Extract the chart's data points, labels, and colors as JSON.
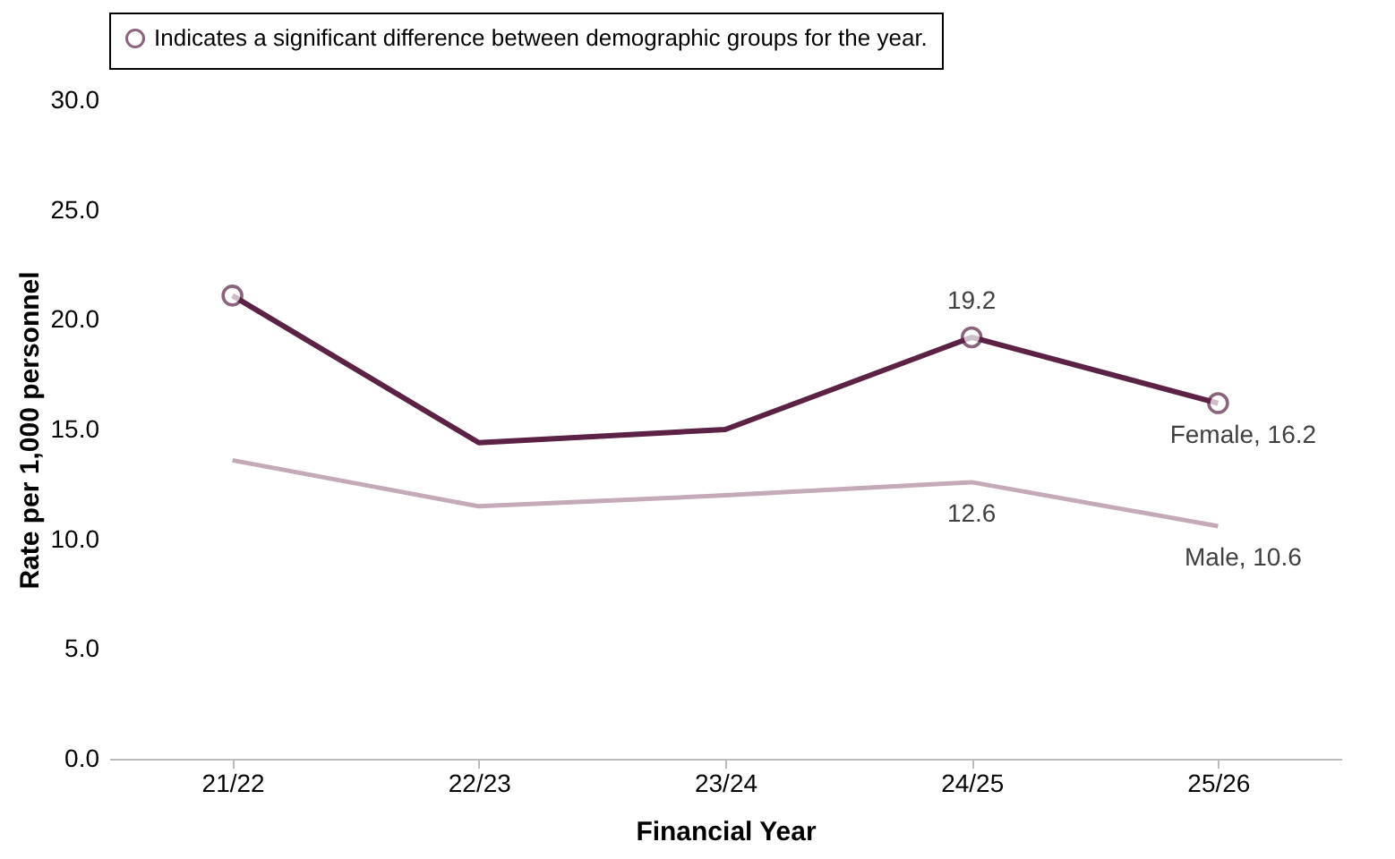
{
  "chart_data": {
    "type": "line",
    "xlabel": "Financial Year",
    "ylabel": "Rate per 1,000 personnel",
    "categories": [
      "21/22",
      "22/23",
      "23/24",
      "24/25",
      "25/26"
    ],
    "series": [
      {
        "color": "#5b2245",
        "values": [
          21.1,
          14.4,
          15.0,
          19.2,
          16.2
        ],
        "value_labels": [
          null,
          null,
          null,
          "19.2",
          "Female, 16.2"
        ]
      },
      {
        "color": "#c4a9b8",
        "values": [
          13.6,
          11.5,
          12.0,
          12.6,
          10.6
        ],
        "value_labels": [
          null,
          null,
          null,
          "12.6",
          "Male, 10.6"
        ]
      },
      {
        "name": "Indicates a significant difference between demographic groups for the year.",
        "type": "scatter",
        "marker": "circle",
        "color": "#5b2245",
        "values": [
          21.1,
          null,
          null,
          19.2,
          16.2
        ]
      }
    ],
    "ylim": [
      0,
      30
    ],
    "yticks": [
      {
        "value": 0,
        "label": "0.0"
      },
      {
        "value": 5,
        "label": "5.0"
      },
      {
        "value": 10,
        "label": "10.0"
      },
      {
        "value": 15,
        "label": "15.0"
      },
      {
        "value": 20,
        "label": "20.0"
      },
      {
        "value": 25,
        "label": "25.0"
      },
      {
        "value": 30,
        "label": "30.0"
      }
    ],
    "grid": false,
    "legend": "top",
    "line_style": "solid"
  }
}
